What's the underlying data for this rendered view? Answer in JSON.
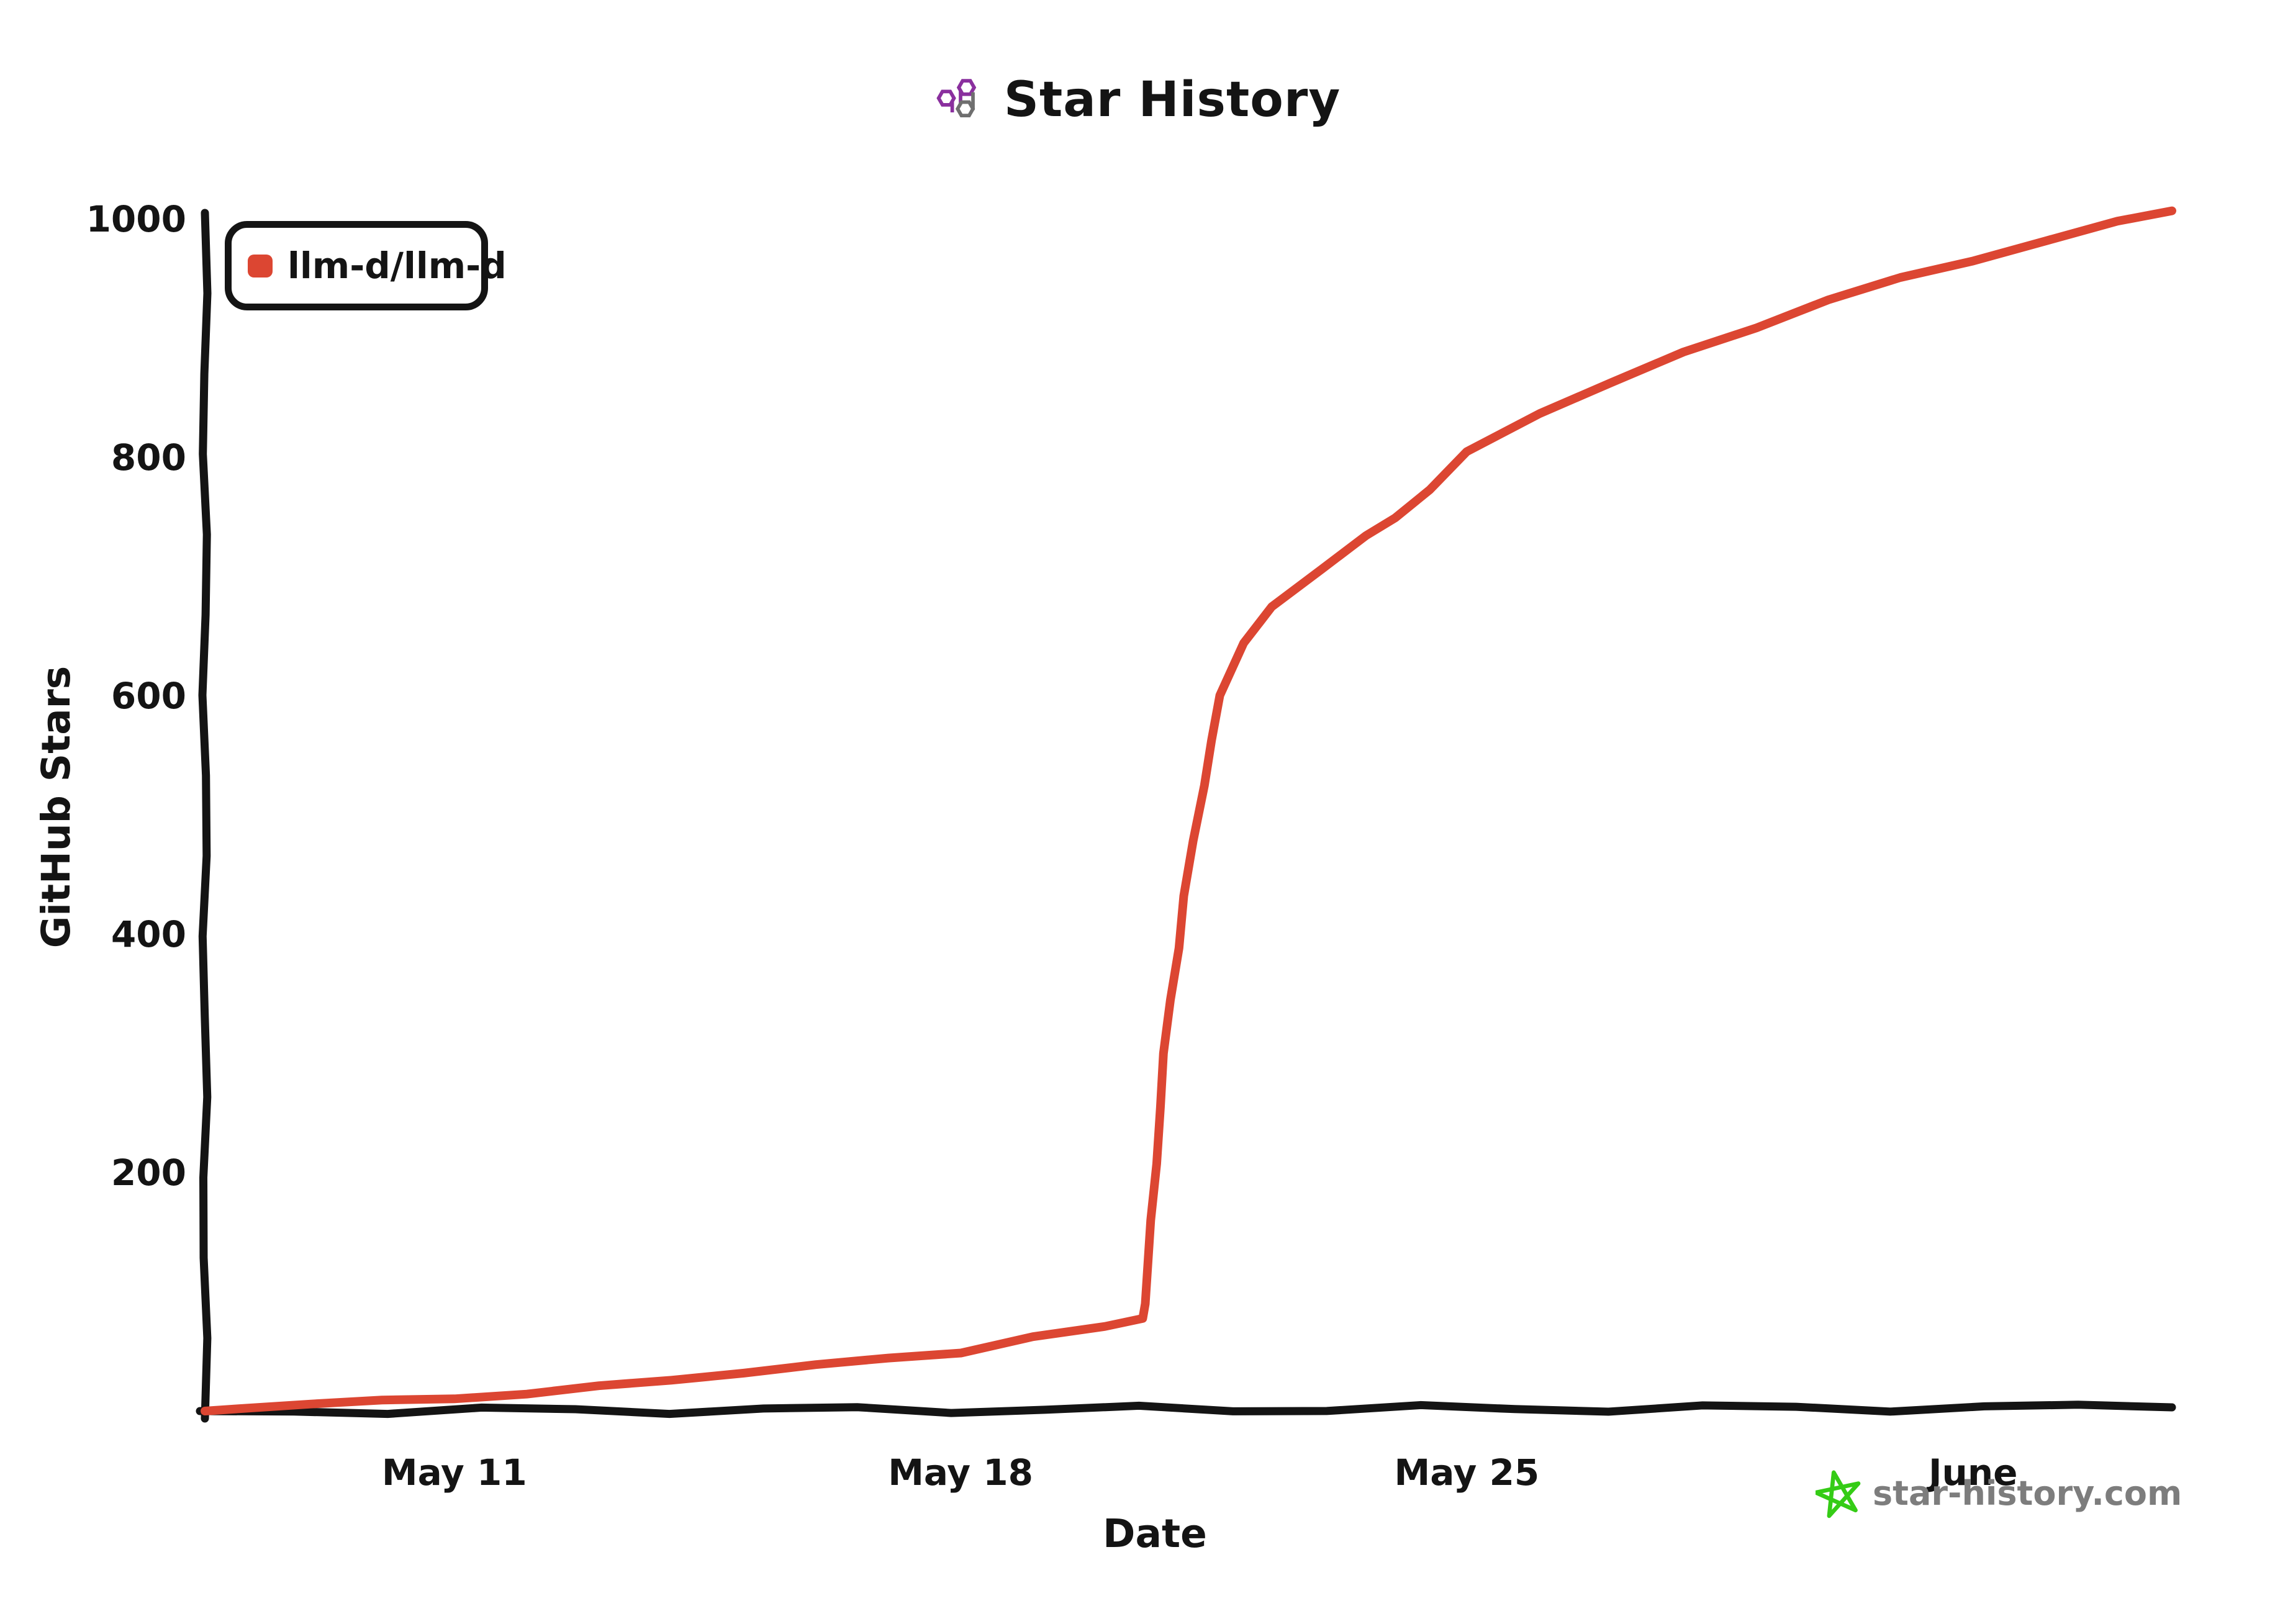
{
  "header": {
    "title": "Star History"
  },
  "logo": {
    "purple": "#8a2f9e",
    "gray": "#6f6f6f"
  },
  "legend": {
    "items": [
      {
        "label": "llm-d/llm-d",
        "color": "#dc4632"
      }
    ]
  },
  "watermark": {
    "text": "star-history.com",
    "star_color": "#35cc16",
    "text_color": "#7d7d7d"
  },
  "colors": {
    "axis": "#141414",
    "background": "#ffffff",
    "series_red": "#dc4632"
  },
  "chart_data": {
    "type": "line",
    "title": "Star History",
    "xlabel": "Date",
    "ylabel": "GitHub Stars",
    "x_unit": "day-of-May-2025 (32 = June 1)",
    "xlim": [
      7.55,
      34.75
    ],
    "ylim": [
      0,
      1000
    ],
    "grid": false,
    "legend_position": "top-left",
    "x_ticks": [
      {
        "v": 11,
        "label": "May 11"
      },
      {
        "v": 18,
        "label": "May 18"
      },
      {
        "v": 25,
        "label": "May 25"
      },
      {
        "v": 32,
        "label": "June"
      }
    ],
    "y_ticks": [
      {
        "v": 200,
        "label": "200"
      },
      {
        "v": 400,
        "label": "400"
      },
      {
        "v": 600,
        "label": "600"
      },
      {
        "v": 800,
        "label": "800"
      },
      {
        "v": 1000,
        "label": "1000"
      }
    ],
    "series": [
      {
        "name": "llm-d/llm-d",
        "color": "#dc4632",
        "points": [
          [
            7.55,
            0
          ],
          [
            8,
            3
          ],
          [
            9,
            6
          ],
          [
            10,
            8
          ],
          [
            11,
            11
          ],
          [
            12,
            15
          ],
          [
            13,
            20
          ],
          [
            14,
            26
          ],
          [
            15,
            33
          ],
          [
            16,
            38
          ],
          [
            17,
            44
          ],
          [
            18,
            50
          ],
          [
            19,
            62
          ],
          [
            20,
            70
          ],
          [
            20.5,
            78
          ],
          [
            20.55,
            90
          ],
          [
            20.65,
            160
          ],
          [
            20.75,
            255
          ],
          [
            20.9,
            345
          ],
          [
            21.1,
            432
          ],
          [
            21.35,
            525
          ],
          [
            21.6,
            600
          ],
          [
            21.9,
            645
          ],
          [
            22.3,
            675
          ],
          [
            23,
            705
          ],
          [
            23.6,
            735
          ],
          [
            24,
            750
          ],
          [
            24.5,
            772
          ],
          [
            25,
            805
          ],
          [
            26,
            838
          ],
          [
            27,
            862
          ],
          [
            28,
            888
          ],
          [
            29,
            910
          ],
          [
            30,
            932
          ],
          [
            31,
            950
          ],
          [
            32,
            966
          ],
          [
            33,
            982
          ],
          [
            34,
            997
          ],
          [
            34.75,
            1007
          ]
        ]
      }
    ]
  }
}
